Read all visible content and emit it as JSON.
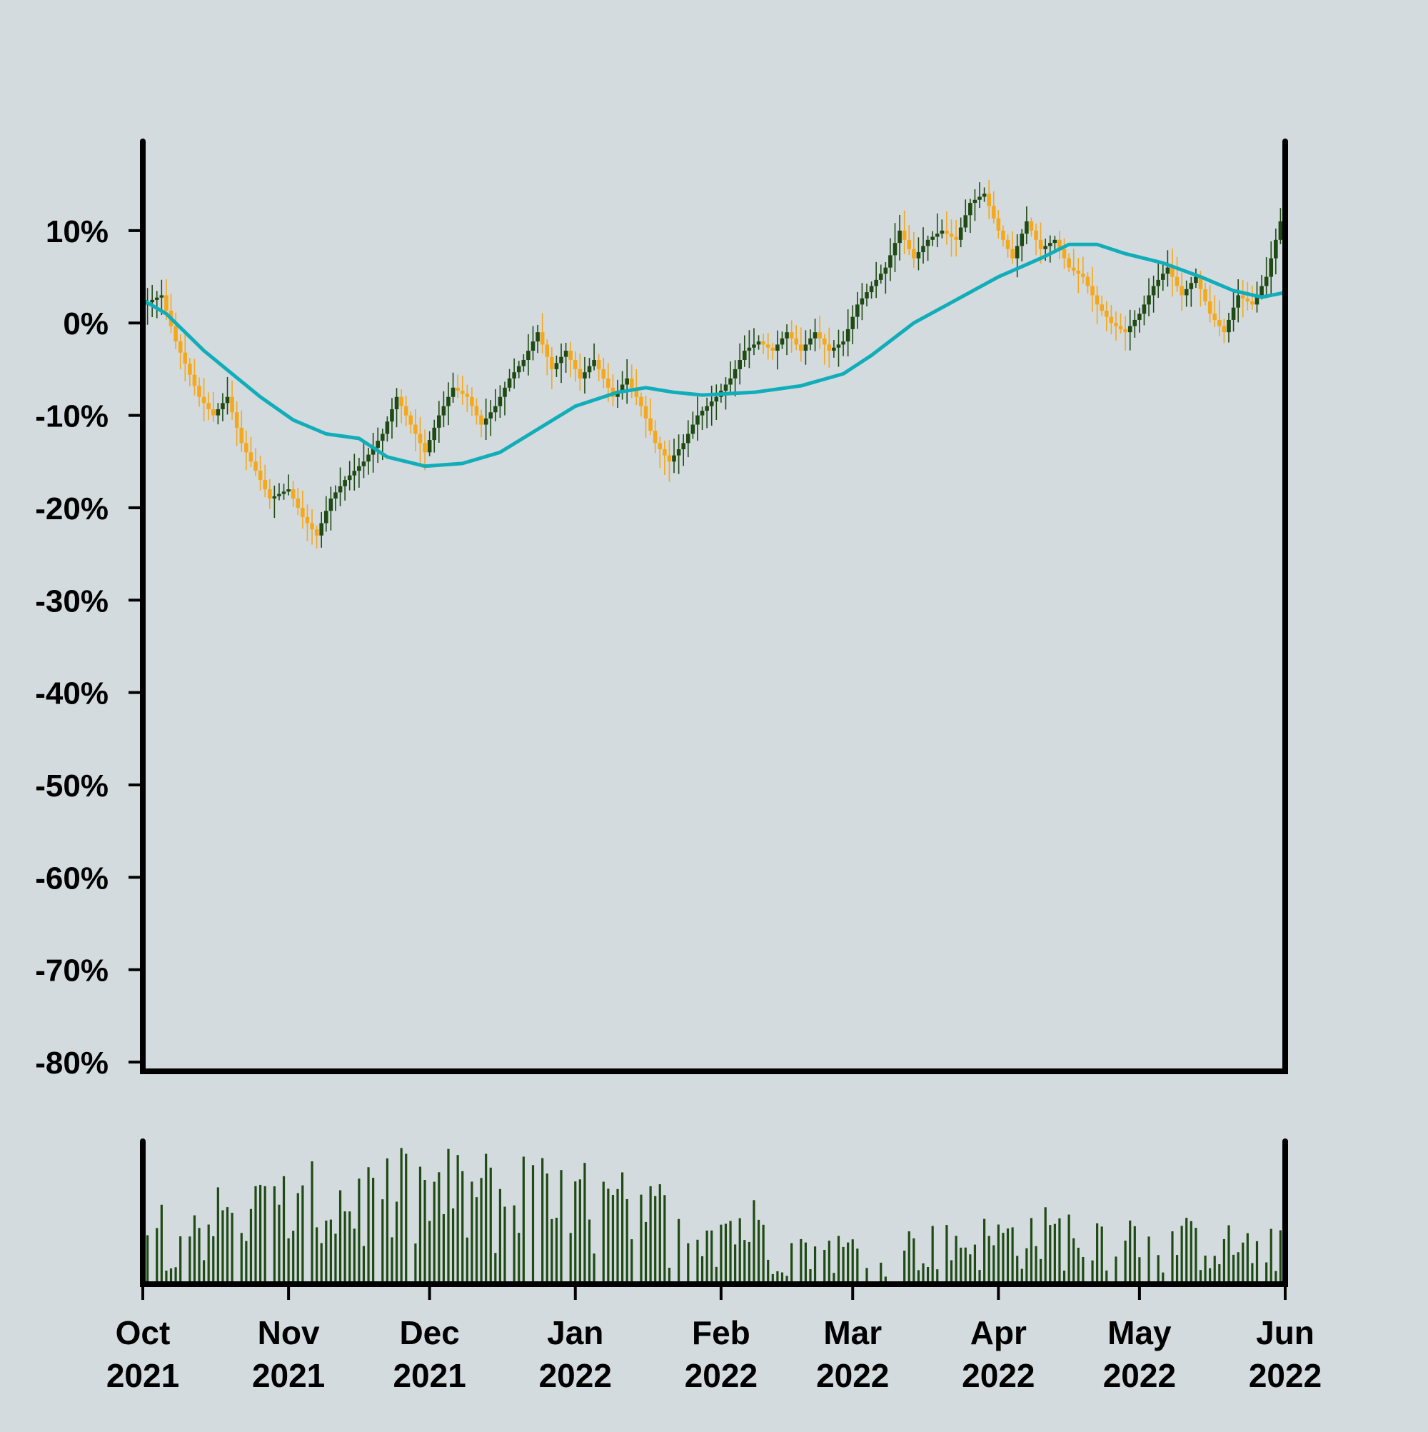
{
  "chart_data": {
    "type": "candlestick",
    "y_axis": {
      "ticks": [
        10,
        0,
        -10,
        -20,
        -30,
        -40,
        -50,
        -60,
        -70,
        -80
      ],
      "tick_labels": [
        "10%",
        "0%",
        "-10%",
        "-20%",
        "-30%",
        "-40%",
        "-50%",
        "-60%",
        "-70%",
        "-80%"
      ],
      "range": [
        -81,
        19.5
      ]
    },
    "x_axis": {
      "range": [
        "2021-10-01",
        "2022-06-01"
      ],
      "ticks": [
        {
          "date": "2021-10-01",
          "month": "Oct",
          "year": "2021"
        },
        {
          "date": "2021-11-01",
          "month": "Nov",
          "year": "2021"
        },
        {
          "date": "2021-12-01",
          "month": "Dec",
          "year": "2021"
        },
        {
          "date": "2022-01-01",
          "month": "Jan",
          "year": "2022"
        },
        {
          "date": "2022-02-01",
          "month": "Feb",
          "year": "2022"
        },
        {
          "date": "2022-03-01",
          "month": "Mar",
          "year": "2022"
        },
        {
          "date": "2022-04-01",
          "month": "Apr",
          "year": "2022"
        },
        {
          "date": "2022-05-01",
          "month": "May",
          "year": "2022"
        },
        {
          "date": "2022-06-01",
          "month": "Jun",
          "year": "2022"
        }
      ]
    },
    "close_path": [
      [
        "2021-10-01",
        2
      ],
      [
        "2021-10-05",
        3
      ],
      [
        "2021-10-08",
        -2
      ],
      [
        "2021-10-13",
        -8
      ],
      [
        "2021-10-16",
        -10
      ],
      [
        "2021-10-19",
        -8
      ],
      [
        "2021-10-22",
        -13
      ],
      [
        "2021-10-25",
        -16
      ],
      [
        "2021-10-28",
        -19
      ],
      [
        "2021-11-01",
        -18
      ],
      [
        "2021-11-04",
        -21
      ],
      [
        "2021-11-07",
        -23
      ],
      [
        "2021-11-10",
        -19
      ],
      [
        "2021-11-13",
        -17
      ],
      [
        "2021-11-17",
        -15
      ],
      [
        "2021-11-21",
        -12
      ],
      [
        "2021-11-24",
        -8
      ],
      [
        "2021-11-27",
        -11
      ],
      [
        "2021-11-30",
        -14
      ],
      [
        "2021-12-03",
        -10
      ],
      [
        "2021-12-06",
        -7
      ],
      [
        "2021-12-09",
        -8
      ],
      [
        "2021-12-12",
        -11
      ],
      [
        "2021-12-15",
        -9
      ],
      [
        "2021-12-18",
        -6
      ],
      [
        "2021-12-21",
        -4
      ],
      [
        "2021-12-24",
        -1
      ],
      [
        "2021-12-27",
        -5
      ],
      [
        "2021-12-30",
        -3
      ],
      [
        "2022-01-02",
        -6
      ],
      [
        "2022-01-05",
        -4
      ],
      [
        "2022-01-09",
        -8
      ],
      [
        "2022-01-12",
        -6
      ],
      [
        "2022-01-15",
        -9
      ],
      [
        "2022-01-18",
        -13
      ],
      [
        "2022-01-21",
        -15
      ],
      [
        "2022-01-24",
        -13
      ],
      [
        "2022-01-27",
        -10
      ],
      [
        "2022-01-31",
        -8
      ],
      [
        "2022-02-03",
        -6
      ],
      [
        "2022-02-06",
        -3
      ],
      [
        "2022-02-09",
        -2
      ],
      [
        "2022-02-12",
        -3
      ],
      [
        "2022-02-15",
        -1
      ],
      [
        "2022-02-18",
        -3
      ],
      [
        "2022-02-21",
        -1
      ],
      [
        "2022-02-24",
        -3
      ],
      [
        "2022-02-27",
        -2
      ],
      [
        "2022-03-02",
        2
      ],
      [
        "2022-03-05",
        4
      ],
      [
        "2022-03-08",
        6
      ],
      [
        "2022-03-11",
        10
      ],
      [
        "2022-03-14",
        7
      ],
      [
        "2022-03-17",
        9
      ],
      [
        "2022-03-20",
        10
      ],
      [
        "2022-03-23",
        9
      ],
      [
        "2022-03-26",
        13
      ],
      [
        "2022-03-29",
        14
      ],
      [
        "2022-04-01",
        10
      ],
      [
        "2022-04-04",
        7
      ],
      [
        "2022-04-07",
        11
      ],
      [
        "2022-04-10",
        8
      ],
      [
        "2022-04-13",
        9
      ],
      [
        "2022-04-16",
        6
      ],
      [
        "2022-04-19",
        5
      ],
      [
        "2022-04-22",
        2
      ],
      [
        "2022-04-25",
        0
      ],
      [
        "2022-04-28",
        -1
      ],
      [
        "2022-05-01",
        1
      ],
      [
        "2022-05-04",
        4
      ],
      [
        "2022-05-07",
        6
      ],
      [
        "2022-05-10",
        3
      ],
      [
        "2022-05-13",
        5
      ],
      [
        "2022-05-16",
        1
      ],
      [
        "2022-05-19",
        -1
      ],
      [
        "2022-05-22",
        3
      ],
      [
        "2022-05-25",
        2
      ],
      [
        "2022-05-28",
        5
      ],
      [
        "2022-05-31",
        11
      ],
      [
        "2022-06-01",
        13
      ]
    ],
    "moving_average": [
      [
        "2021-10-01",
        2.5
      ],
      [
        "2021-10-06",
        1
      ],
      [
        "2021-10-10",
        -1
      ],
      [
        "2021-10-14",
        -3
      ],
      [
        "2021-10-20",
        -5.5
      ],
      [
        "2021-10-26",
        -8
      ],
      [
        "2021-11-02",
        -10.5
      ],
      [
        "2021-11-09",
        -12
      ],
      [
        "2021-11-16",
        -12.5
      ],
      [
        "2021-11-22",
        -14.5
      ],
      [
        "2021-11-30",
        -15.5
      ],
      [
        "2021-12-08",
        -15.2
      ],
      [
        "2021-12-16",
        -14
      ],
      [
        "2021-12-24",
        -11.5
      ],
      [
        "2022-01-01",
        -9
      ],
      [
        "2022-01-10",
        -7.5
      ],
      [
        "2022-01-16",
        -7
      ],
      [
        "2022-01-22",
        -7.5
      ],
      [
        "2022-01-28",
        -7.8
      ],
      [
        "2022-02-08",
        -7.5
      ],
      [
        "2022-02-18",
        -6.8
      ],
      [
        "2022-02-27",
        -5.5
      ],
      [
        "2022-03-05",
        -3.5
      ],
      [
        "2022-03-14",
        0
      ],
      [
        "2022-03-23",
        2.5
      ],
      [
        "2022-04-01",
        5
      ],
      [
        "2022-04-10",
        7
      ],
      [
        "2022-04-16",
        8.5
      ],
      [
        "2022-04-22",
        8.5
      ],
      [
        "2022-04-28",
        7.5
      ],
      [
        "2022-05-06",
        6.5
      ],
      [
        "2022-05-14",
        5
      ],
      [
        "2022-05-21",
        3.5
      ],
      [
        "2022-05-27",
        2.8
      ],
      [
        "2022-06-01",
        3.3
      ]
    ],
    "colors": {
      "background": "#d3dbdf",
      "up_candle": "#1f4a14",
      "down_candle": "#f5a81b",
      "moving_average": "#11adb9",
      "volume": "#1f4a14",
      "axes": "#000000"
    },
    "volume_panel": {
      "has_y_labels": false
    }
  }
}
